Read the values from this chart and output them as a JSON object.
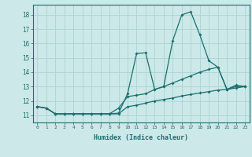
{
  "title": "",
  "xlabel": "Humidex (Indice chaleur)",
  "ylabel": "",
  "background_color": "#cce8e8",
  "grid_color": "#aad4d4",
  "line_color": "#1a7070",
  "x_values": [
    0,
    1,
    2,
    3,
    4,
    5,
    6,
    7,
    8,
    9,
    10,
    11,
    12,
    13,
    14,
    15,
    16,
    17,
    18,
    19,
    20,
    21,
    22,
    23
  ],
  "line1": [
    11.6,
    11.5,
    11.1,
    11.1,
    11.1,
    11.1,
    11.1,
    11.1,
    11.1,
    11.15,
    12.5,
    15.3,
    15.35,
    12.8,
    13.0,
    16.2,
    18.0,
    18.2,
    16.6,
    14.8,
    14.35,
    12.8,
    13.1,
    13.0
  ],
  "line2": [
    11.6,
    11.5,
    11.1,
    11.1,
    11.1,
    11.1,
    11.1,
    11.1,
    11.1,
    11.5,
    12.3,
    12.4,
    12.5,
    12.8,
    13.0,
    13.25,
    13.5,
    13.75,
    14.0,
    14.2,
    14.35,
    12.8,
    13.0,
    13.0
  ],
  "line3": [
    11.6,
    11.5,
    11.1,
    11.1,
    11.1,
    11.1,
    11.1,
    11.1,
    11.1,
    11.1,
    11.6,
    11.7,
    11.85,
    12.0,
    12.1,
    12.2,
    12.35,
    12.45,
    12.55,
    12.65,
    12.75,
    12.8,
    12.9,
    13.0
  ],
  "ylim": [
    10.5,
    18.7
  ],
  "xlim": [
    -0.5,
    23.5
  ],
  "yticks": [
    11,
    12,
    13,
    14,
    15,
    16,
    17,
    18
  ],
  "xticks": [
    0,
    1,
    2,
    3,
    4,
    5,
    6,
    7,
    8,
    9,
    10,
    11,
    12,
    13,
    14,
    15,
    16,
    17,
    18,
    19,
    20,
    21,
    22,
    23
  ]
}
